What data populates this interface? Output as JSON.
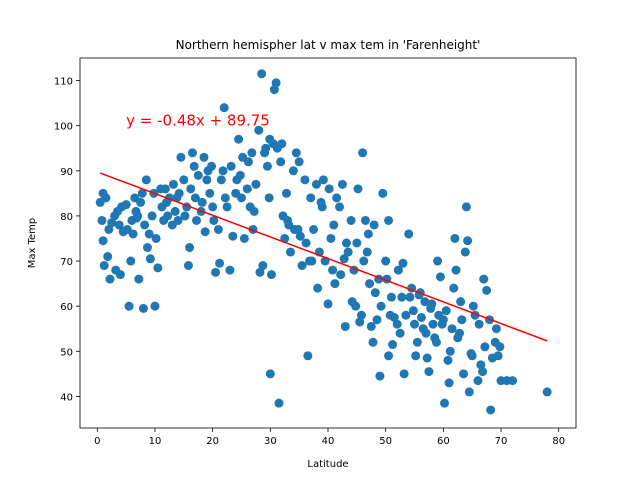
{
  "chart_data": {
    "type": "scatter",
    "title": "Northern hemispher lat v max tem in 'Farenheight'",
    "xlabel": "Latitude",
    "ylabel": "Max Temp",
    "xlim": [
      -3,
      83
    ],
    "ylim": [
      33,
      115
    ],
    "xticks": [
      0,
      10,
      20,
      30,
      40,
      50,
      60,
      70,
      80
    ],
    "yticks": [
      40,
      50,
      60,
      70,
      80,
      90,
      100,
      110
    ],
    "grid": false,
    "colors": {
      "points": "#1f77b4",
      "line": "#ff0000",
      "equation": "#ff0000"
    },
    "regression": {
      "slope": -0.48,
      "intercept": 89.75,
      "x_range": [
        0.5,
        78
      ],
      "equation_label": "y = -0.48x + 89.75",
      "equation_anchor": [
        5,
        100
      ]
    },
    "points": [
      [
        0.5,
        83
      ],
      [
        0.8,
        79
      ],
      [
        1,
        74.5
      ],
      [
        1.2,
        69
      ],
      [
        1.5,
        84
      ],
      [
        1.8,
        71
      ],
      [
        2,
        77
      ],
      [
        2.2,
        66
      ],
      [
        2.5,
        78.5
      ],
      [
        3,
        80
      ],
      [
        3.2,
        68
      ],
      [
        3.5,
        81
      ],
      [
        4,
        67
      ],
      [
        4.5,
        76.5
      ],
      [
        5,
        82.5
      ],
      [
        5.2,
        77
      ],
      [
        5.5,
        60
      ],
      [
        5.8,
        70
      ],
      [
        6,
        79
      ],
      [
        6.2,
        76
      ],
      [
        6.5,
        84
      ],
      [
        6.7,
        81
      ],
      [
        7,
        80
      ],
      [
        7.2,
        66
      ],
      [
        7.5,
        83
      ],
      [
        7.8,
        85
      ],
      [
        8,
        59.5
      ],
      [
        8.2,
        78
      ],
      [
        8.5,
        88
      ],
      [
        8.7,
        73
      ],
      [
        9,
        76
      ],
      [
        9.2,
        70.5
      ],
      [
        9.5,
        80
      ],
      [
        10,
        60
      ],
      [
        10.2,
        75
      ],
      [
        10.5,
        68.5
      ],
      [
        11,
        86
      ],
      [
        11.2,
        82
      ],
      [
        11.5,
        79
      ],
      [
        12,
        83
      ],
      [
        12.2,
        80
      ],
      [
        12.5,
        84
      ],
      [
        13,
        78
      ],
      [
        13.2,
        87
      ],
      [
        13.5,
        81
      ],
      [
        14,
        79
      ],
      [
        14.2,
        85
      ],
      [
        14.5,
        93
      ],
      [
        15,
        88
      ],
      [
        15.2,
        80
      ],
      [
        15.5,
        82
      ],
      [
        15.8,
        69
      ],
      [
        16,
        73
      ],
      [
        16.2,
        86
      ],
      [
        16.5,
        94
      ],
      [
        17,
        84
      ],
      [
        17.2,
        79
      ],
      [
        17.5,
        89
      ],
      [
        18,
        81
      ],
      [
        18.2,
        83
      ],
      [
        18.5,
        93
      ],
      [
        18.7,
        76.5
      ],
      [
        19,
        88
      ],
      [
        19.2,
        90
      ],
      [
        19.5,
        85
      ],
      [
        20,
        82
      ],
      [
        20.2,
        79
      ],
      [
        20.5,
        67.5
      ],
      [
        21,
        77
      ],
      [
        21.2,
        69.5
      ],
      [
        21.5,
        88
      ],
      [
        22,
        104
      ],
      [
        22.2,
        84
      ],
      [
        22.5,
        82
      ],
      [
        23,
        68
      ],
      [
        23.2,
        91
      ],
      [
        23.5,
        75.5
      ],
      [
        24,
        85
      ],
      [
        24.2,
        88
      ],
      [
        24.5,
        97
      ],
      [
        25,
        84
      ],
      [
        25.2,
        93
      ],
      [
        25.5,
        75
      ],
      [
        26,
        86
      ],
      [
        26.2,
        92
      ],
      [
        26.5,
        82
      ],
      [
        27,
        77
      ],
      [
        27.2,
        81
      ],
      [
        27.5,
        87
      ],
      [
        28,
        99
      ],
      [
        28.2,
        67.5
      ],
      [
        28.5,
        111.5
      ],
      [
        28.7,
        69
      ],
      [
        29,
        94
      ],
      [
        29.2,
        95
      ],
      [
        29.5,
        91
      ],
      [
        29.8,
        84
      ],
      [
        30,
        45
      ],
      [
        30.2,
        67
      ],
      [
        30.5,
        96
      ],
      [
        30.7,
        108
      ],
      [
        31,
        109.5
      ],
      [
        31.2,
        95
      ],
      [
        31.5,
        38.5
      ],
      [
        31.8,
        92
      ],
      [
        32,
        96
      ],
      [
        32.2,
        80
      ],
      [
        32.5,
        75
      ],
      [
        33,
        79
      ],
      [
        33.2,
        78
      ],
      [
        33.5,
        72
      ],
      [
        34,
        90
      ],
      [
        34.2,
        77
      ],
      [
        34.5,
        94
      ],
      [
        35,
        92
      ],
      [
        35.2,
        75.5
      ],
      [
        35.5,
        69
      ],
      [
        36,
        88
      ],
      [
        36.2,
        74
      ],
      [
        36.5,
        49
      ],
      [
        37,
        84
      ],
      [
        37.2,
        70
      ],
      [
        37.5,
        77
      ],
      [
        38,
        87
      ],
      [
        38.2,
        64
      ],
      [
        38.5,
        72
      ],
      [
        39,
        82
      ],
      [
        39.2,
        88
      ],
      [
        39.5,
        70
      ],
      [
        40,
        60.5
      ],
      [
        40.2,
        86
      ],
      [
        40.5,
        75
      ],
      [
        41,
        78
      ],
      [
        41.2,
        65
      ],
      [
        41.5,
        84
      ],
      [
        42,
        82
      ],
      [
        42.2,
        67
      ],
      [
        42.5,
        87
      ],
      [
        43,
        55.5
      ],
      [
        43.2,
        74
      ],
      [
        43.5,
        72
      ],
      [
        44,
        79
      ],
      [
        44.2,
        61
      ],
      [
        44.5,
        68
      ],
      [
        45,
        74
      ],
      [
        45.2,
        86
      ],
      [
        45.5,
        56.5
      ],
      [
        46,
        94
      ],
      [
        46.2,
        70
      ],
      [
        46.5,
        79
      ],
      [
        47,
        76
      ],
      [
        47.2,
        65
      ],
      [
        47.5,
        55.5
      ],
      [
        48,
        78
      ],
      [
        48.2,
        63
      ],
      [
        48.5,
        57
      ],
      [
        49,
        44.5
      ],
      [
        49.2,
        60
      ],
      [
        49.5,
        85
      ],
      [
        50,
        70
      ],
      [
        50.2,
        66
      ],
      [
        50.5,
        79
      ],
      [
        51,
        62
      ],
      [
        51.2,
        51.5
      ],
      [
        51.5,
        57.5
      ],
      [
        52,
        56
      ],
      [
        52.2,
        68
      ],
      [
        52.5,
        54
      ],
      [
        53,
        69.5
      ],
      [
        53.2,
        45
      ],
      [
        53.5,
        58
      ],
      [
        54,
        76
      ],
      [
        54.2,
        62
      ],
      [
        54.5,
        64
      ],
      [
        55,
        56
      ],
      [
        55.2,
        49
      ],
      [
        55.5,
        52
      ],
      [
        56,
        63
      ],
      [
        56.2,
        57.5
      ],
      [
        56.5,
        55
      ],
      [
        57,
        54
      ],
      [
        57.2,
        48.5
      ],
      [
        57.5,
        45.5
      ],
      [
        58,
        60.5
      ],
      [
        58.2,
        56
      ],
      [
        58.5,
        53
      ],
      [
        59,
        70
      ],
      [
        59.2,
        58
      ],
      [
        59.5,
        66.5
      ],
      [
        60,
        57
      ],
      [
        60.2,
        38.5
      ],
      [
        60.5,
        59
      ],
      [
        61,
        43
      ],
      [
        61.2,
        50
      ],
      [
        61.5,
        55
      ],
      [
        62,
        75
      ],
      [
        62.2,
        68
      ],
      [
        62.5,
        53
      ],
      [
        63,
        61
      ],
      [
        63.2,
        57
      ],
      [
        63.5,
        45
      ],
      [
        64,
        82
      ],
      [
        64.2,
        74.5
      ],
      [
        64.5,
        41
      ],
      [
        65,
        49
      ],
      [
        65.2,
        60
      ],
      [
        65.5,
        58
      ],
      [
        66,
        43.5
      ],
      [
        66.2,
        56
      ],
      [
        66.5,
        47
      ],
      [
        67,
        66
      ],
      [
        67.2,
        51
      ],
      [
        67.5,
        63.5
      ],
      [
        68,
        57
      ],
      [
        68.2,
        37
      ],
      [
        68.5,
        48.5
      ],
      [
        69,
        52
      ],
      [
        69.2,
        55
      ],
      [
        69.5,
        49
      ],
      [
        70,
        43.5
      ],
      [
        71,
        43.5
      ],
      [
        72,
        43.5
      ],
      [
        78,
        41
      ],
      [
        1,
        85
      ],
      [
        3.8,
        78
      ],
      [
        4.2,
        82
      ],
      [
        6.8,
        79.5
      ],
      [
        9.8,
        85
      ],
      [
        11.8,
        86
      ],
      [
        13.8,
        84
      ],
      [
        16.8,
        91
      ],
      [
        19.8,
        91
      ],
      [
        21.8,
        90
      ],
      [
        24.8,
        89
      ],
      [
        26.8,
        94
      ],
      [
        29.9,
        97
      ],
      [
        32.8,
        85
      ],
      [
        34.8,
        77
      ],
      [
        36.8,
        70
      ],
      [
        38.8,
        83
      ],
      [
        40.8,
        68
      ],
      [
        42.8,
        70.5
      ],
      [
        44.8,
        60
      ],
      [
        46.8,
        72
      ],
      [
        48.8,
        66
      ],
      [
        50.8,
        58
      ],
      [
        52.8,
        62
      ],
      [
        54.8,
        59
      ],
      [
        56.8,
        61
      ],
      [
        58.8,
        52
      ],
      [
        60.8,
        48
      ],
      [
        62.8,
        54
      ],
      [
        64.8,
        49.5
      ],
      [
        66.8,
        45.5
      ],
      [
        69.8,
        51
      ],
      [
        45.8,
        58
      ],
      [
        47.8,
        52
      ],
      [
        50.5,
        49
      ],
      [
        55.8,
        62.5
      ],
      [
        59.8,
        56
      ],
      [
        61.8,
        64
      ],
      [
        63.8,
        72
      ],
      [
        57.8,
        59.5
      ]
    ]
  }
}
